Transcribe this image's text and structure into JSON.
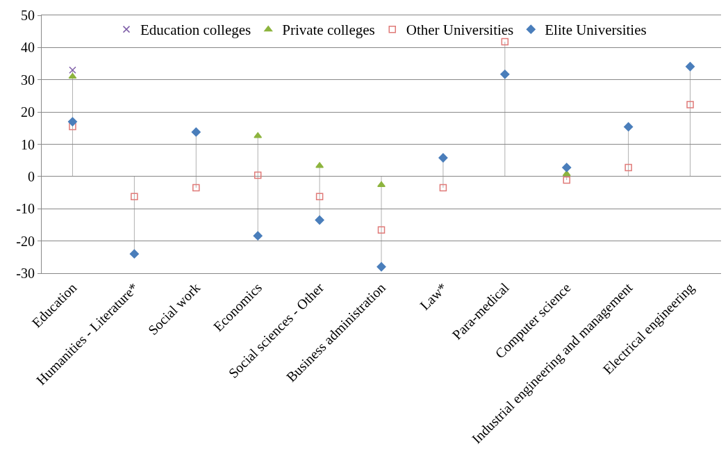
{
  "chart_data": {
    "type": "scatter",
    "categories": [
      "Education",
      "Humanities - Literature*",
      "Social work",
      "Economics",
      "Social sciences - Other",
      "Business administration",
      "Law*",
      "Para-medical",
      "Computer science",
      "Industrial engineering and management",
      "Electrical engineering"
    ],
    "series": [
      {
        "name": "Education colleges",
        "color": "#7f5fa8",
        "marker": "cross",
        "values": [
          33,
          null,
          null,
          null,
          null,
          null,
          null,
          null,
          null,
          null,
          null
        ]
      },
      {
        "name": "Private colleges",
        "color": "#8db43e",
        "marker": "triangle",
        "values": [
          31,
          null,
          null,
          12.6,
          3.3,
          -2.6,
          null,
          null,
          0.8,
          null,
          null
        ]
      },
      {
        "name": "Other Universities",
        "color": "#e07a78",
        "marker": "square",
        "values": [
          15.5,
          -6.2,
          -3.5,
          0.4,
          -6.2,
          -16.6,
          -3.5,
          41.8,
          -1.1,
          2.8,
          22.3
        ]
      },
      {
        "name": "Elite Universities",
        "color": "#4a7ebb",
        "marker": "diamond",
        "values": [
          17,
          -24,
          13.8,
          -18.4,
          -13.5,
          -28,
          5.8,
          31.7,
          2.8,
          15.4,
          34.1
        ]
      }
    ],
    "ylim": [
      -30,
      50
    ],
    "yticks": [
      -30,
      -20,
      -10,
      0,
      10,
      20,
      30,
      40,
      50
    ],
    "grid": "y",
    "legend": "top"
  }
}
